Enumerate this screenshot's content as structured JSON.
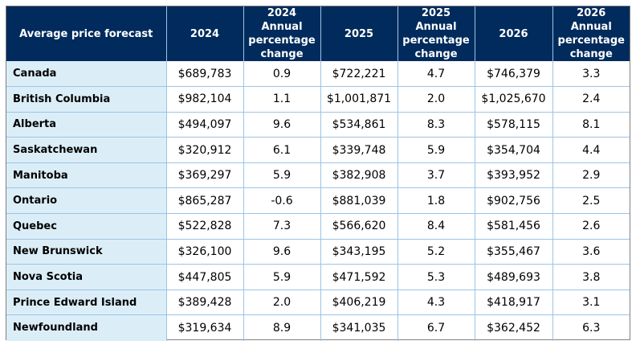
{
  "table": {
    "headers": [
      "Average price forecast",
      "2024",
      "2024 Annual percentage change",
      "2025",
      "2025 Annual percentage change",
      "2026",
      "2026 Annual percentage change"
    ],
    "rows": [
      [
        "Canada",
        "$689,783",
        "0.9",
        "$722,221",
        "4.7",
        "$746,379",
        "3.3"
      ],
      [
        "British Columbia",
        "$982,104",
        "1.1",
        "$1,001,871",
        "2.0",
        "$1,025,670",
        "2.4"
      ],
      [
        "Alberta",
        "$494,097",
        "9.6",
        "$534,861",
        "8.3",
        "$578,115",
        "8.1"
      ],
      [
        "Saskatchewan",
        "$320,912",
        "6.1",
        "$339,748",
        "5.9",
        "$354,704",
        "4.4"
      ],
      [
        "Manitoba",
        "$369,297",
        "5.9",
        "$382,908",
        "3.7",
        "$393,952",
        "2.9"
      ],
      [
        "Ontario",
        "$865,287",
        "-0.6",
        "$881,039",
        "1.8",
        "$902,756",
        "2.5"
      ],
      [
        "Quebec",
        "$522,828",
        "7.3",
        "$566,620",
        "8.4",
        "$581,456",
        "2.6"
      ],
      [
        "New Brunswick",
        "$326,100",
        "9.6",
        "$343,195",
        "5.2",
        "$355,467",
        "3.6"
      ],
      [
        "Nova Scotia",
        "$447,805",
        "5.9",
        "$471,592",
        "5.3",
        "$489,693",
        "3.8"
      ],
      [
        "Prince Edward Island",
        "$389,428",
        "2.0",
        "$406,219",
        "4.3",
        "$418,917",
        "3.1"
      ],
      [
        "Newfoundland",
        "$319,634",
        "8.9",
        "$341,035",
        "6.7",
        "$362,452",
        "6.3"
      ]
    ],
    "colors": {
      "header_bg": "#002b5c",
      "header_text": "#ffffff",
      "region_bg": "#dbeef8",
      "grid_line": "#9dc3e6"
    }
  }
}
